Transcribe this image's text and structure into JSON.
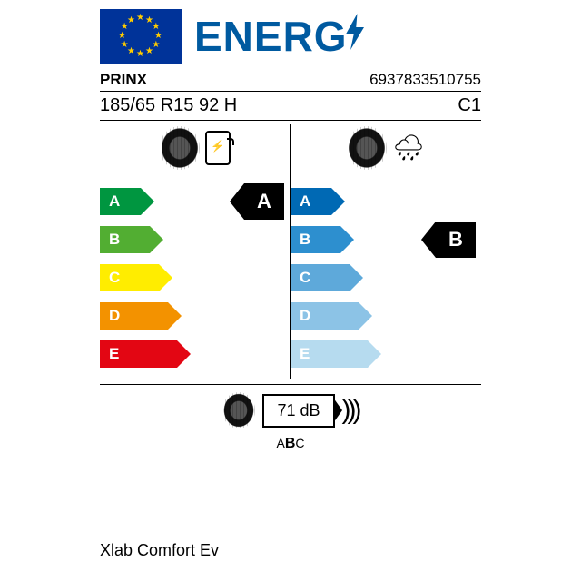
{
  "header": {
    "title": "ENERG",
    "eu_flag_bg": "#003399",
    "star_color": "#ffcc00",
    "title_color": "#005aa0"
  },
  "meta": {
    "brand": "PRINX",
    "article": "6937833510755",
    "size": "185/65 R15 92 H",
    "class": "C1"
  },
  "fuel": {
    "grades": [
      "A",
      "B",
      "C",
      "D",
      "E"
    ],
    "colors": [
      "#009640",
      "#52ae32",
      "#ffed00",
      "#f39200",
      "#e30613"
    ],
    "widths": [
      45,
      55,
      65,
      75,
      85
    ],
    "rating": "A"
  },
  "wet": {
    "grades": [
      "A",
      "B",
      "C",
      "D",
      "E"
    ],
    "colors": [
      "#0069b4",
      "#2d8fcf",
      "#5ea9da",
      "#8cc3e6",
      "#b6dbef"
    ],
    "widths": [
      45,
      55,
      65,
      75,
      85
    ],
    "rating": "B"
  },
  "noise": {
    "value": "71 dB",
    "classes": "ABC",
    "selected_class": "B"
  },
  "product_name": "Xlab Comfort Ev"
}
